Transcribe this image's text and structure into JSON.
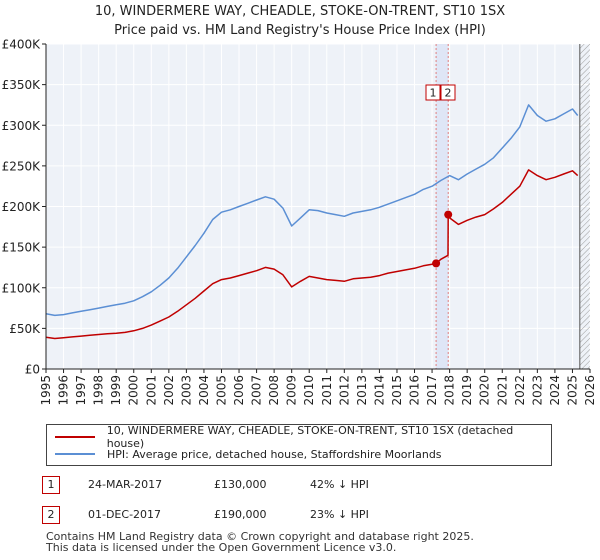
{
  "title_line1": "10, WINDERMERE WAY, CHEADLE, STOKE-ON-TRENT, ST10 1SX",
  "title_line2": "Price paid vs. HM Land Registry's House Price Index (HPI)",
  "chart_data": {
    "type": "line",
    "xlim": [
      1995,
      2026
    ],
    "ylim": [
      0,
      400000
    ],
    "y_ticks": [
      0,
      50000,
      100000,
      150000,
      200000,
      250000,
      300000,
      350000,
      400000
    ],
    "y_tick_labels": [
      "£0",
      "£50K",
      "£100K",
      "£150K",
      "£200K",
      "£250K",
      "£300K",
      "£350K",
      "£400K"
    ],
    "x_tick_labels": [
      "1995",
      "1996",
      "1997",
      "1998",
      "1999",
      "2000",
      "2001",
      "2002",
      "2003",
      "2004",
      "2005",
      "2006",
      "2007",
      "2008",
      "2009",
      "2010",
      "2011",
      "2012",
      "2013",
      "2014",
      "2015",
      "2016",
      "2017",
      "2018",
      "2019",
      "2020",
      "2021",
      "2022",
      "2023",
      "2024",
      "2025",
      "2026"
    ],
    "grid": true,
    "series": [
      {
        "name": "10, WINDERMERE WAY, CHEADLE, STOKE-ON-TRENT, ST10 1SX (detached house)",
        "color": "#c00000",
        "points": [
          [
            1995.0,
            39000
          ],
          [
            1995.5,
            37500
          ],
          [
            1996.0,
            38500
          ],
          [
            1996.5,
            39500
          ],
          [
            1997.0,
            40500
          ],
          [
            1997.5,
            41500
          ],
          [
            1998.0,
            42500
          ],
          [
            1998.5,
            43500
          ],
          [
            1999.0,
            44000
          ],
          [
            1999.5,
            45000
          ],
          [
            2000.0,
            47000
          ],
          [
            2000.5,
            50000
          ],
          [
            2001.0,
            54000
          ],
          [
            2001.5,
            59000
          ],
          [
            2002.0,
            64000
          ],
          [
            2002.5,
            71000
          ],
          [
            2003.0,
            79000
          ],
          [
            2003.5,
            87000
          ],
          [
            2004.0,
            96000
          ],
          [
            2004.5,
            105000
          ],
          [
            2005.0,
            110000
          ],
          [
            2005.5,
            112000
          ],
          [
            2006.0,
            115000
          ],
          [
            2006.5,
            118000
          ],
          [
            2007.0,
            121000
          ],
          [
            2007.5,
            125000
          ],
          [
            2008.0,
            123000
          ],
          [
            2008.5,
            116000
          ],
          [
            2009.0,
            101000
          ],
          [
            2009.5,
            108000
          ],
          [
            2010.0,
            114000
          ],
          [
            2010.5,
            112000
          ],
          [
            2011.0,
            110000
          ],
          [
            2011.5,
            109000
          ],
          [
            2012.0,
            108000
          ],
          [
            2012.5,
            111000
          ],
          [
            2013.0,
            112000
          ],
          [
            2013.5,
            113000
          ],
          [
            2014.0,
            115000
          ],
          [
            2014.5,
            118000
          ],
          [
            2015.0,
            120000
          ],
          [
            2015.5,
            122000
          ],
          [
            2016.0,
            124000
          ],
          [
            2016.5,
            127000
          ],
          [
            2017.0,
            129000
          ],
          [
            2017.23,
            130000
          ],
          [
            2017.5,
            135000
          ],
          [
            2017.91,
            140000
          ],
          [
            2017.92,
            190000
          ],
          [
            2018.0,
            186000
          ],
          [
            2018.5,
            178000
          ],
          [
            2019.0,
            183000
          ],
          [
            2019.5,
            187000
          ],
          [
            2020.0,
            190000
          ],
          [
            2020.5,
            197000
          ],
          [
            2021.0,
            205000
          ],
          [
            2021.5,
            215000
          ],
          [
            2022.0,
            225000
          ],
          [
            2022.5,
            245000
          ],
          [
            2023.0,
            238000
          ],
          [
            2023.5,
            233000
          ],
          [
            2024.0,
            236000
          ],
          [
            2024.5,
            240000
          ],
          [
            2025.0,
            244000
          ],
          [
            2025.3,
            238000
          ]
        ]
      },
      {
        "name": "HPI: Average price, detached house, Staffordshire Moorlands",
        "color": "#5b8fd4",
        "points": [
          [
            1995.0,
            68000
          ],
          [
            1995.5,
            66000
          ],
          [
            1996.0,
            67000
          ],
          [
            1996.5,
            69000
          ],
          [
            1997.0,
            71000
          ],
          [
            1997.5,
            73000
          ],
          [
            1998.0,
            75000
          ],
          [
            1998.5,
            77000
          ],
          [
            1999.0,
            79000
          ],
          [
            1999.5,
            81000
          ],
          [
            2000.0,
            84000
          ],
          [
            2000.5,
            89000
          ],
          [
            2001.0,
            95000
          ],
          [
            2001.5,
            103000
          ],
          [
            2002.0,
            112000
          ],
          [
            2002.5,
            124000
          ],
          [
            2003.0,
            138000
          ],
          [
            2003.5,
            152000
          ],
          [
            2004.0,
            167000
          ],
          [
            2004.5,
            184000
          ],
          [
            2005.0,
            193000
          ],
          [
            2005.5,
            196000
          ],
          [
            2006.0,
            200000
          ],
          [
            2006.5,
            204000
          ],
          [
            2007.0,
            208000
          ],
          [
            2007.5,
            212000
          ],
          [
            2008.0,
            209000
          ],
          [
            2008.5,
            198000
          ],
          [
            2009.0,
            176000
          ],
          [
            2009.5,
            186000
          ],
          [
            2010.0,
            196000
          ],
          [
            2010.5,
            195000
          ],
          [
            2011.0,
            192000
          ],
          [
            2011.5,
            190000
          ],
          [
            2012.0,
            188000
          ],
          [
            2012.5,
            192000
          ],
          [
            2013.0,
            194000
          ],
          [
            2013.5,
            196000
          ],
          [
            2014.0,
            199000
          ],
          [
            2014.5,
            203000
          ],
          [
            2015.0,
            207000
          ],
          [
            2015.5,
            211000
          ],
          [
            2016.0,
            215000
          ],
          [
            2016.5,
            221000
          ],
          [
            2017.0,
            225000
          ],
          [
            2017.5,
            232000
          ],
          [
            2018.0,
            238000
          ],
          [
            2018.5,
            233000
          ],
          [
            2019.0,
            240000
          ],
          [
            2019.5,
            246000
          ],
          [
            2020.0,
            252000
          ],
          [
            2020.5,
            260000
          ],
          [
            2021.0,
            272000
          ],
          [
            2021.5,
            284000
          ],
          [
            2022.0,
            298000
          ],
          [
            2022.5,
            325000
          ],
          [
            2023.0,
            312000
          ],
          [
            2023.5,
            305000
          ],
          [
            2024.0,
            308000
          ],
          [
            2024.5,
            314000
          ],
          [
            2025.0,
            320000
          ],
          [
            2025.3,
            312000
          ]
        ]
      }
    ],
    "sales": [
      {
        "label": "1",
        "x": 2017.23,
        "price": 130000
      },
      {
        "label": "2",
        "x": 2017.92,
        "price": 190000
      }
    ],
    "hatch_start": 2025.42
  },
  "legend": [
    {
      "label": "10, WINDERMERE WAY, CHEADLE, STOKE-ON-TRENT, ST10 1SX (detached house)",
      "color": "#c00000"
    },
    {
      "label": "HPI: Average price, detached house, Staffordshire Moorlands",
      "color": "#5b8fd4"
    }
  ],
  "transactions": [
    {
      "num": "1",
      "date": "24-MAR-2017",
      "price": "£130,000",
      "hpi": "42% ↓ HPI"
    },
    {
      "num": "2",
      "date": "01-DEC-2017",
      "price": "£190,000",
      "hpi": "23% ↓ HPI"
    }
  ],
  "footer_line1": "Contains HM Land Registry data © Crown copyright and database right 2025.",
  "footer_line2": "This data is licensed under the Open Government Licence v3.0."
}
